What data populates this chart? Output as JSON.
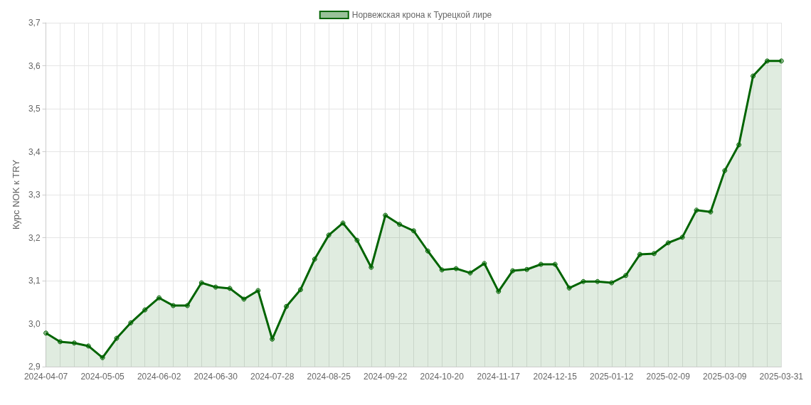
{
  "chart_data": {
    "type": "area",
    "ylabel": "Курс NOK к TRY",
    "categories": [
      "2024-04-07",
      null,
      null,
      null,
      "2024-05-05",
      null,
      null,
      null,
      "2024-06-02",
      null,
      null,
      null,
      "2024-06-30",
      null,
      null,
      null,
      "2024-07-28",
      null,
      null,
      null,
      "2024-08-25",
      null,
      null,
      null,
      "2024-09-22",
      null,
      null,
      null,
      "2024-10-20",
      null,
      null,
      null,
      "2024-11-17",
      null,
      null,
      null,
      "2024-12-15",
      null,
      null,
      null,
      "2025-01-12",
      null,
      null,
      null,
      "2025-02-09",
      null,
      null,
      null,
      "2025-03-09",
      null,
      null,
      null,
      "2025-03-31"
    ],
    "series": [
      {
        "name": "Норвежская крона к Турецкой лире",
        "color": "#006400",
        "values": [
          2.978,
          2.958,
          2.955,
          2.948,
          2.921,
          2.966,
          3.002,
          3.032,
          3.06,
          3.042,
          3.042,
          3.095,
          3.085,
          3.082,
          3.057,
          3.077,
          2.964,
          3.04,
          3.079,
          3.15,
          3.206,
          3.234,
          3.194,
          3.131,
          3.252,
          3.231,
          3.216,
          3.169,
          3.125,
          3.128,
          3.118,
          3.14,
          3.075,
          3.123,
          3.126,
          3.138,
          3.138,
          3.083,
          3.098,
          3.098,
          3.095,
          3.112,
          3.161,
          3.163,
          3.188,
          3.201,
          3.264,
          3.26,
          3.356,
          3.416,
          3.576,
          3.611,
          3.611
        ]
      }
    ],
    "ylim": [
      2.9,
      3.7
    ],
    "yticks": [
      {
        "value": 2.9,
        "label": "2,9"
      },
      {
        "value": 3.0,
        "label": "3,0"
      },
      {
        "value": 3.1,
        "label": "3,1"
      },
      {
        "value": 3.2,
        "label": "3,2"
      },
      {
        "value": 3.3,
        "label": "3,3"
      },
      {
        "value": 3.4,
        "label": "3,4"
      },
      {
        "value": 3.5,
        "label": "3,5"
      },
      {
        "value": 3.6,
        "label": "3,6"
      },
      {
        "value": 3.7,
        "label": "3,7"
      }
    ],
    "grid": true,
    "legend": "top",
    "marker": "circle",
    "line_style": "solid"
  }
}
